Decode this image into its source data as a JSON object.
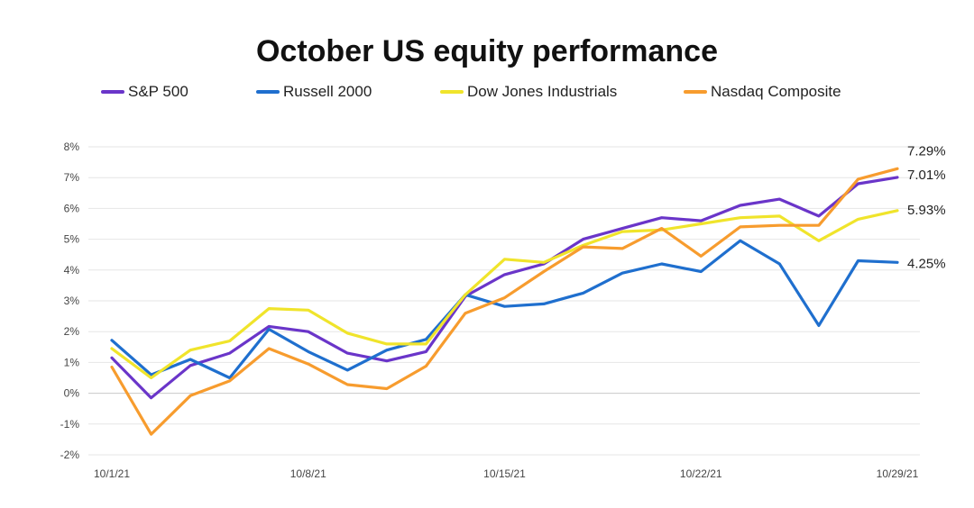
{
  "chart_data": {
    "type": "line",
    "title": "October US equity performance",
    "xlabel": "",
    "ylabel": "",
    "ylim": [
      -2,
      8
    ],
    "yticks": [
      "8%",
      "7%",
      "6%",
      "5%",
      "4%",
      "3%",
      "2%",
      "1%",
      "0%",
      "-1%",
      "-2%"
    ],
    "y_tick_values": [
      8,
      7,
      6,
      5,
      4,
      3,
      2,
      1,
      0,
      -1,
      -2
    ],
    "x_tick_labels": [
      "10/1/21",
      "10/8/21",
      "10/15/21",
      "10/22/21",
      "10/29/21"
    ],
    "x_tick_positions": [
      0,
      5,
      10,
      15,
      20
    ],
    "x": [
      "10/1/21",
      "10/4/21",
      "10/5/21",
      "10/6/21",
      "10/7/21",
      "10/8/21",
      "10/11/21",
      "10/12/21",
      "10/13/21",
      "10/14/21",
      "10/15/21",
      "10/18/21",
      "10/19/21",
      "10/20/21",
      "10/21/21",
      "10/22/21",
      "10/25/21",
      "10/26/21",
      "10/27/21",
      "10/28/21",
      "10/29/21"
    ],
    "legend_position": "top",
    "grid": true,
    "series": [
      {
        "name": "S&P 500",
        "color": "#6a35c9",
        "values": [
          1.15,
          -0.15,
          0.9,
          1.3,
          2.17,
          2.0,
          1.3,
          1.05,
          1.35,
          3.15,
          3.85,
          4.2,
          5.0,
          5.35,
          5.7,
          5.6,
          6.1,
          6.3,
          5.75,
          6.8,
          7.01
        ]
      },
      {
        "name": "Russell 2000",
        "color": "#1f6fce",
        "values": [
          1.72,
          0.6,
          1.1,
          0.5,
          2.08,
          1.35,
          0.75,
          1.4,
          1.75,
          3.2,
          2.82,
          2.9,
          3.25,
          3.9,
          4.2,
          3.95,
          4.95,
          4.2,
          2.2,
          4.3,
          4.25
        ]
      },
      {
        "name": "Dow Jones Industrials",
        "color": "#f0e42b",
        "values": [
          1.45,
          0.5,
          1.4,
          1.7,
          2.75,
          2.7,
          1.95,
          1.6,
          1.6,
          3.2,
          4.35,
          4.25,
          4.8,
          5.25,
          5.3,
          5.5,
          5.7,
          5.75,
          4.95,
          5.65,
          5.93
        ]
      },
      {
        "name": "Nasdaq Composite",
        "color": "#f79c2e",
        "values": [
          0.85,
          -1.33,
          -0.08,
          0.4,
          1.45,
          0.95,
          0.28,
          0.15,
          0.88,
          2.6,
          3.1,
          3.95,
          4.75,
          4.7,
          5.35,
          4.45,
          5.4,
          5.45,
          5.45,
          6.95,
          7.29
        ]
      }
    ],
    "annotations": [
      {
        "series": "Nasdaq Composite",
        "text": "7.29%"
      },
      {
        "series": "S&P 500",
        "text": "7.01%"
      },
      {
        "series": "Dow Jones Industrials",
        "text": "5.93%"
      },
      {
        "series": "Russell 2000",
        "text": "4.25%"
      }
    ]
  }
}
